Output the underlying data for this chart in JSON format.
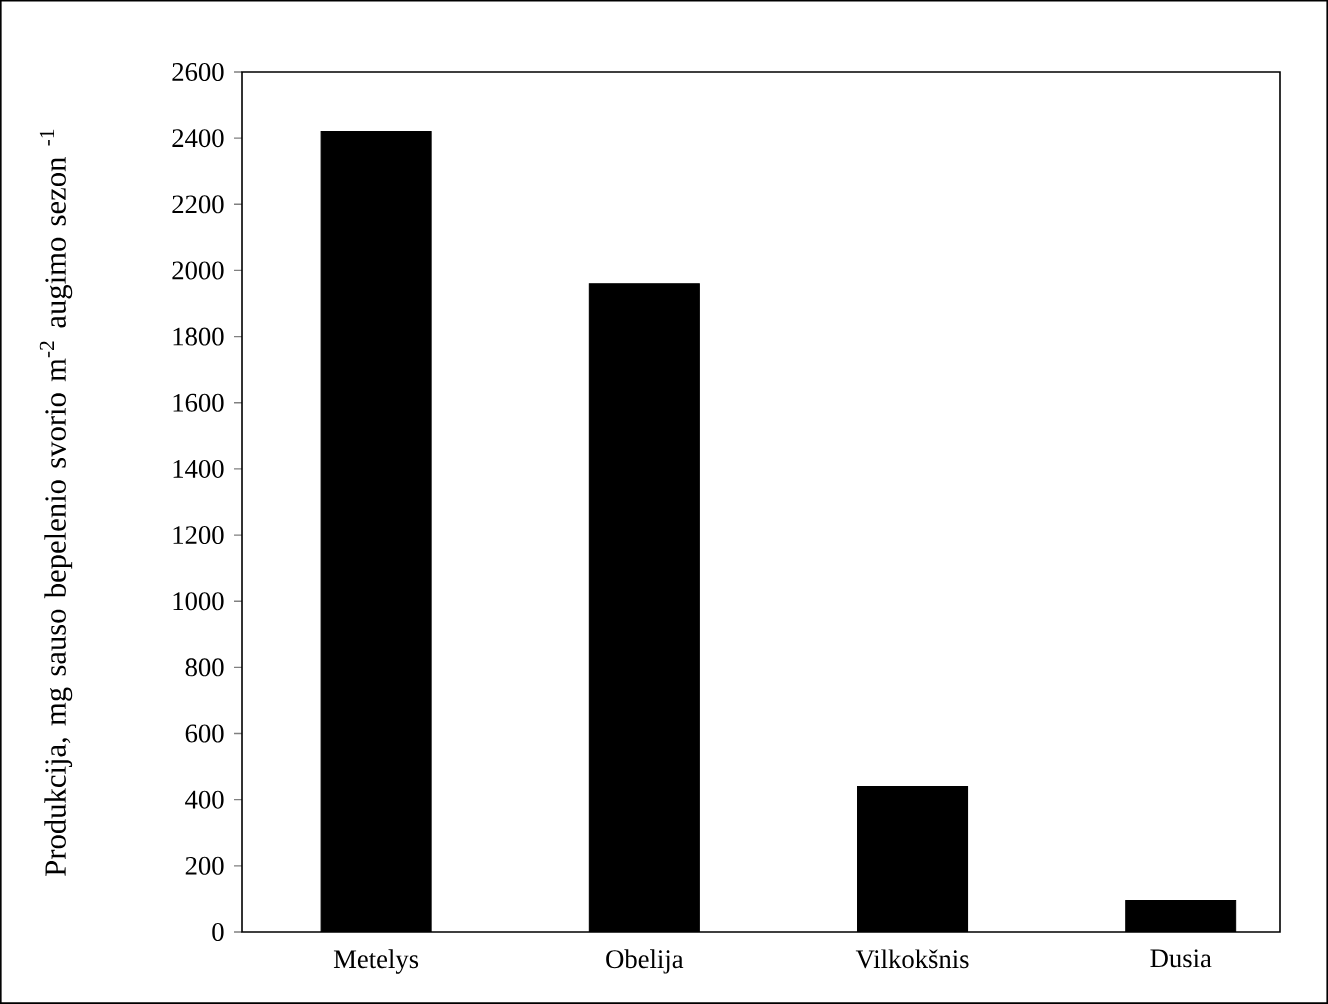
{
  "chart_data": {
    "type": "bar",
    "ylabel": "Produkcija, mg sauso bepelenio svorio  m$^{-2}$ augimo sezon $^{-1}$",
    "categories": [
      "Metelys",
      "Obelija",
      "Vilkokšnis",
      "Dusia"
    ],
    "values": [
      2420,
      1960,
      440,
      95
    ],
    "color": "#000000",
    "ylim": [
      0,
      2600
    ],
    "yticks": [
      0,
      200,
      400,
      600,
      800,
      1000,
      1200,
      1400,
      1600,
      1800,
      2000,
      2200,
      2400,
      2600
    ],
    "grid": false
  }
}
